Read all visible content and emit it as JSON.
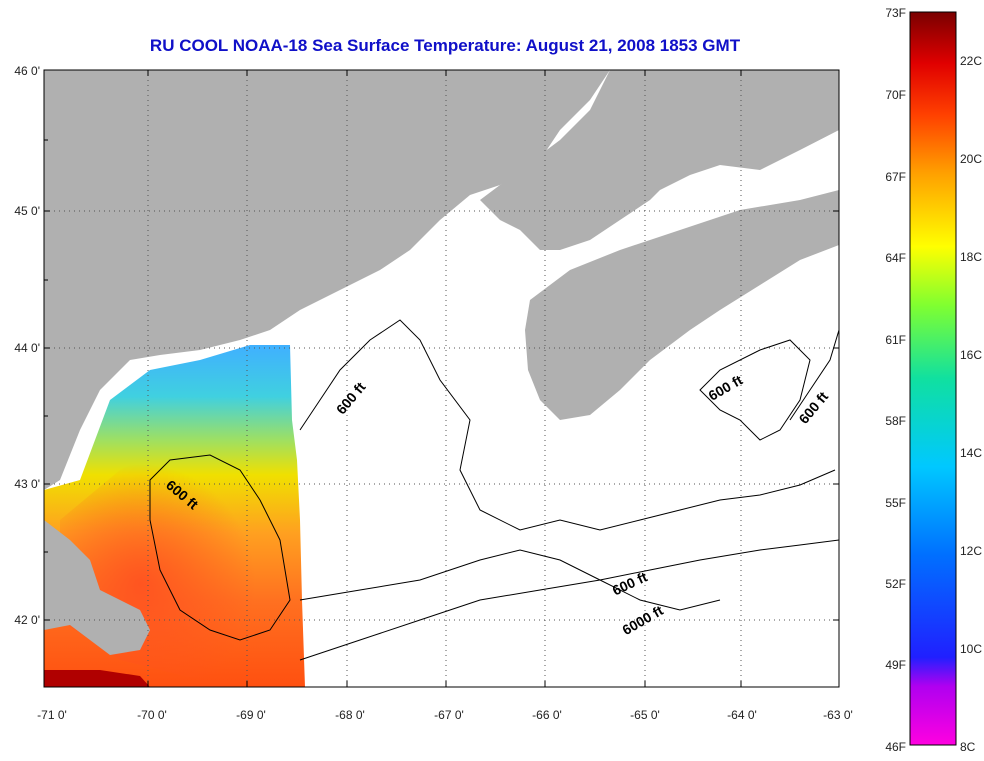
{
  "title": "RU COOL  NOAA-18  Sea Surface Temperature:  August 21, 2008 1853 GMT",
  "lat_labels": [
    "46 0'",
    "45 0'",
    "44 0'",
    "43 0'",
    "42 0'"
  ],
  "lon_labels": [
    "-71 0'",
    "-70 0'",
    "-69 0'",
    "-68 0'",
    "-67 0'",
    "-66 0'",
    "-65 0'",
    "-64 0'",
    "-63 0'"
  ],
  "colorbar": {
    "fahrenheit": [
      "73F",
      "70F",
      "67F",
      "64F",
      "61F",
      "58F",
      "55F",
      "52F",
      "49F",
      "46F"
    ],
    "celsius": [
      "22C",
      "20C",
      "18C",
      "16C",
      "14C",
      "12C",
      "10C",
      "8C"
    ]
  },
  "contour_labels": [
    "600 ft",
    "600 ft",
    "600 ft",
    "600 ft",
    "600 ft",
    "6000 ft"
  ],
  "colors": {
    "title": "#1010c8",
    "land": "#b0b0b0",
    "no_data": "#ffffff"
  }
}
